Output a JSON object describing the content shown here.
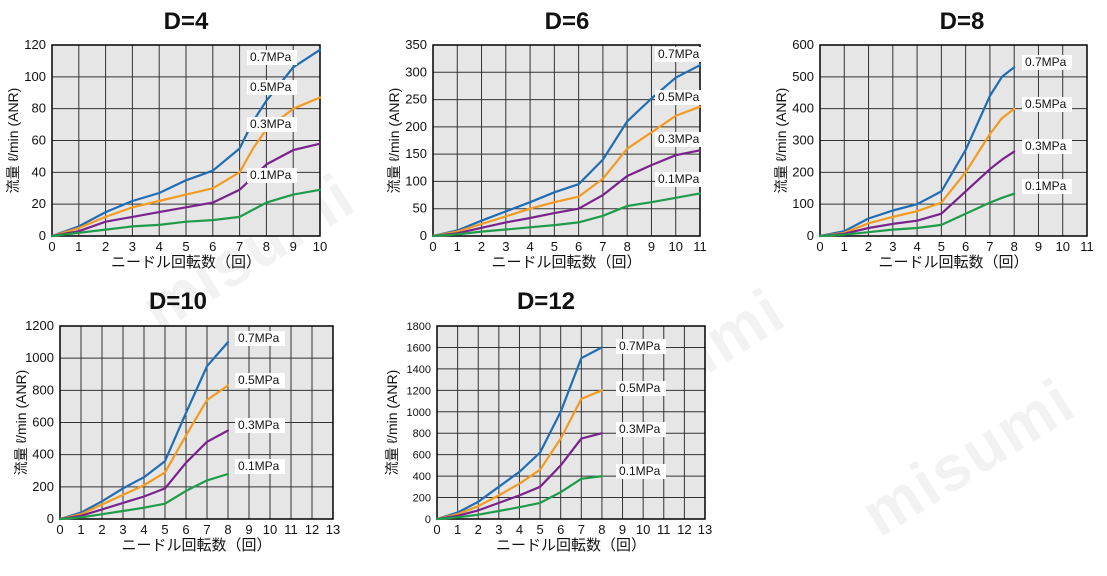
{
  "watermark": "misumi",
  "colors": {
    "p07": "#1f6db5",
    "p05": "#f39a21",
    "p03": "#7a238c",
    "p01": "#1e9c4a",
    "grid": "#333333",
    "panel": "#e6e6e6"
  },
  "chart_data": [
    {
      "type": "line",
      "title": "D=4",
      "ylabel": "流量 ℓ/min (ANR)",
      "xlabel": "ニードル回転数（回）",
      "xlim": [
        0,
        10
      ],
      "ylim": [
        0,
        120
      ],
      "xticks": [
        0,
        1,
        2,
        3,
        4,
        5,
        6,
        7,
        8,
        9,
        10
      ],
      "yticks": [
        0,
        20,
        40,
        60,
        80,
        100,
        120
      ],
      "series": [
        {
          "name": "0.7MPa",
          "x": [
            0,
            1,
            2,
            3,
            4,
            5,
            6,
            7,
            7.5,
            8,
            9,
            10
          ],
          "y": [
            0,
            6,
            15,
            22,
            27,
            35,
            41,
            55,
            72,
            85,
            106,
            117
          ]
        },
        {
          "name": "0.5MPa",
          "x": [
            0,
            1,
            2,
            3,
            4,
            5,
            6,
            7,
            7.5,
            8,
            9,
            10
          ],
          "y": [
            0,
            5,
            12,
            18,
            22,
            26,
            30,
            40,
            55,
            67,
            80,
            87
          ]
        },
        {
          "name": "0.3MPa",
          "x": [
            0,
            1,
            2,
            3,
            4,
            5,
            6,
            7,
            8,
            9,
            10
          ],
          "y": [
            0,
            3,
            9,
            12,
            15,
            18,
            21,
            29,
            45,
            54,
            58
          ]
        },
        {
          "name": "0.1MPa",
          "x": [
            0,
            1,
            2,
            3,
            4,
            5,
            6,
            7,
            8,
            9,
            10
          ],
          "y": [
            0,
            2,
            4,
            6,
            7,
            9,
            10,
            12,
            21,
            26,
            29
          ]
        }
      ]
    },
    {
      "type": "line",
      "title": "D=6",
      "ylabel": "流量 ℓ/min (ANR)",
      "xlabel": "ニードル回転数（回）",
      "xlim": [
        0,
        11
      ],
      "ylim": [
        0,
        350
      ],
      "xticks": [
        0,
        1,
        2,
        3,
        4,
        5,
        6,
        7,
        8,
        9,
        10,
        11
      ],
      "yticks": [
        0,
        50,
        100,
        150,
        200,
        250,
        300,
        350
      ],
      "series": [
        {
          "name": "0.7MPa",
          "x": [
            0,
            1,
            2,
            3,
            4,
            5,
            6,
            7,
            8,
            9,
            10,
            11
          ],
          "y": [
            0,
            10,
            28,
            45,
            62,
            80,
            95,
            140,
            210,
            252,
            290,
            313
          ]
        },
        {
          "name": "0.5MPa",
          "x": [
            0,
            1,
            2,
            3,
            4,
            5,
            6,
            7,
            8,
            9,
            10,
            11
          ],
          "y": [
            0,
            8,
            22,
            36,
            50,
            62,
            72,
            105,
            160,
            190,
            220,
            237
          ]
        },
        {
          "name": "0.3MPa",
          "x": [
            0,
            1,
            2,
            3,
            4,
            5,
            6,
            7,
            8,
            9,
            10,
            11
          ],
          "y": [
            0,
            5,
            15,
            25,
            33,
            42,
            50,
            75,
            110,
            130,
            148,
            157
          ]
        },
        {
          "name": "0.1MPa",
          "x": [
            0,
            1,
            2,
            3,
            4,
            5,
            6,
            7,
            8,
            9,
            10,
            11
          ],
          "y": [
            0,
            3,
            8,
            12,
            16,
            20,
            25,
            37,
            55,
            62,
            70,
            78
          ]
        }
      ]
    },
    {
      "type": "line",
      "title": "D=8",
      "ylabel": "流量 ℓ/min (ANR)",
      "xlabel": "ニードル回転数（回）",
      "xlim": [
        0,
        11
      ],
      "ylim": [
        0,
        600
      ],
      "xticks": [
        0,
        1,
        2,
        3,
        4,
        5,
        6,
        7,
        8,
        9,
        10,
        11
      ],
      "yticks": [
        0,
        100,
        200,
        300,
        400,
        500,
        600
      ],
      "series": [
        {
          "name": "0.7MPa",
          "x": [
            0,
            1,
            2,
            3,
            4,
            5,
            6,
            7,
            7.5,
            8
          ],
          "y": [
            0,
            15,
            55,
            80,
            100,
            140,
            270,
            440,
            500,
            530
          ]
        },
        {
          "name": "0.5MPa",
          "x": [
            0,
            1,
            2,
            3,
            4,
            5,
            6,
            7,
            7.5,
            8
          ],
          "y": [
            0,
            10,
            40,
            60,
            78,
            105,
            200,
            320,
            370,
            400
          ]
        },
        {
          "name": "0.3MPa",
          "x": [
            0,
            1,
            2,
            3,
            4,
            5,
            6,
            7,
            7.5,
            8
          ],
          "y": [
            0,
            7,
            25,
            38,
            48,
            70,
            140,
            210,
            240,
            265
          ]
        },
        {
          "name": "0.1MPa",
          "x": [
            0,
            1,
            2,
            3,
            4,
            5,
            6,
            7,
            7.5,
            8
          ],
          "y": [
            0,
            4,
            12,
            20,
            25,
            35,
            70,
            105,
            120,
            133
          ]
        }
      ]
    },
    {
      "type": "line",
      "title": "D=10",
      "ylabel": "流量 ℓ/min (ANR)",
      "xlabel": "ニードル回転数（回）",
      "xlim": [
        0,
        13
      ],
      "ylim": [
        0,
        1200
      ],
      "xticks": [
        0,
        1,
        2,
        3,
        4,
        5,
        6,
        7,
        8,
        9,
        10,
        11,
        12,
        13
      ],
      "yticks": [
        0,
        200,
        400,
        600,
        800,
        1000,
        1200
      ],
      "series": [
        {
          "name": "0.7MPa",
          "x": [
            0,
            1,
            2,
            3,
            4,
            5,
            6,
            7,
            8
          ],
          "y": [
            0,
            40,
            110,
            190,
            260,
            360,
            660,
            950,
            1100
          ]
        },
        {
          "name": "0.5MPa",
          "x": [
            0,
            1,
            2,
            3,
            4,
            5,
            6,
            7,
            8
          ],
          "y": [
            0,
            30,
            90,
            150,
            210,
            290,
            520,
            740,
            830
          ]
        },
        {
          "name": "0.3MPa",
          "x": [
            0,
            1,
            2,
            3,
            4,
            5,
            6,
            7,
            8
          ],
          "y": [
            0,
            20,
            60,
            100,
            140,
            190,
            350,
            480,
            550
          ]
        },
        {
          "name": "0.1MPa",
          "x": [
            0,
            1,
            2,
            3,
            4,
            5,
            6,
            7,
            8
          ],
          "y": [
            0,
            10,
            30,
            50,
            70,
            95,
            175,
            240,
            280
          ]
        }
      ]
    },
    {
      "type": "line",
      "title": "D=12",
      "ylabel": "流量 ℓ/min (ANR)",
      "xlabel": "ニードル回転数（回）",
      "xlim": [
        0,
        13
      ],
      "ylim": [
        0,
        1800
      ],
      "xticks": [
        0,
        1,
        2,
        3,
        4,
        5,
        6,
        7,
        8,
        9,
        10,
        11,
        12,
        13
      ],
      "yticks": [
        0,
        200,
        400,
        600,
        800,
        1000,
        1200,
        1400,
        1600,
        1800
      ],
      "series": [
        {
          "name": "0.7MPa",
          "x": [
            0,
            1,
            2,
            3,
            4,
            5,
            6,
            7,
            8
          ],
          "y": [
            0,
            60,
            160,
            300,
            440,
            620,
            1000,
            1500,
            1600
          ]
        },
        {
          "name": "0.5MPa",
          "x": [
            0,
            1,
            2,
            3,
            4,
            5,
            6,
            7,
            8
          ],
          "y": [
            0,
            45,
            120,
            220,
            330,
            460,
            750,
            1120,
            1200
          ]
        },
        {
          "name": "0.3MPa",
          "x": [
            0,
            1,
            2,
            3,
            4,
            5,
            6,
            7,
            8
          ],
          "y": [
            0,
            30,
            80,
            150,
            220,
            300,
            500,
            750,
            800
          ]
        },
        {
          "name": "0.1MPa",
          "x": [
            0,
            1,
            2,
            3,
            4,
            5,
            6,
            7,
            8
          ],
          "y": [
            0,
            15,
            40,
            75,
            110,
            150,
            250,
            375,
            400
          ]
        }
      ]
    }
  ]
}
